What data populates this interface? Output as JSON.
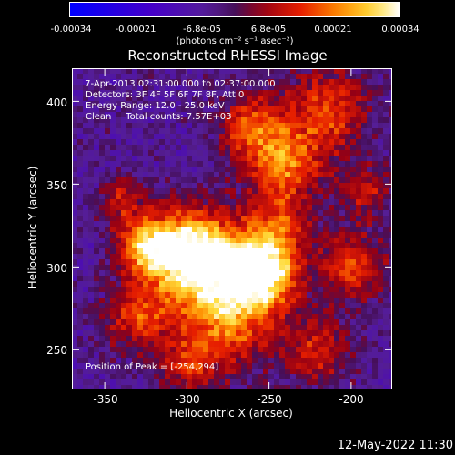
{
  "colorbar": {
    "ticks": [
      "-0.00034",
      "-0.00021",
      "-6.8e-05",
      "6.8e-05",
      "0.00021",
      "0.00034"
    ],
    "units": "(photons cm⁻² s⁻¹ asec⁻²)"
  },
  "chart_data": {
    "type": "heatmap",
    "title": "Reconstructed RHESSI Image",
    "xlabel": "Heliocentric X (arcsec)",
    "ylabel": "Heliocentric Y (arcsec)",
    "xlim": [
      -370,
      -175
    ],
    "ylim": [
      226,
      420
    ],
    "xticks": [
      -350,
      -300,
      -250,
      -200
    ],
    "yticks": [
      250,
      300,
      350,
      400
    ],
    "clim": [
      -0.00034,
      0.00034
    ],
    "colormap": "rhessi-heat",
    "peak": [
      -254,
      294
    ],
    "annotations": {
      "time": " 7-Apr-2013 02:31:00.000 to 02:37:00.000",
      "detectors": "Detectors: 3F 4F 5F 6F 7F 8F, Att 0",
      "energy": "Energy Range: 12.0 - 25.0 keV",
      "clean": "Clean     Total counts: 7.57E+03",
      "peak_text": "Position of Peak = [-254,294]"
    }
  },
  "footer": {
    "timestamp": "12-May-2022 11:30"
  }
}
